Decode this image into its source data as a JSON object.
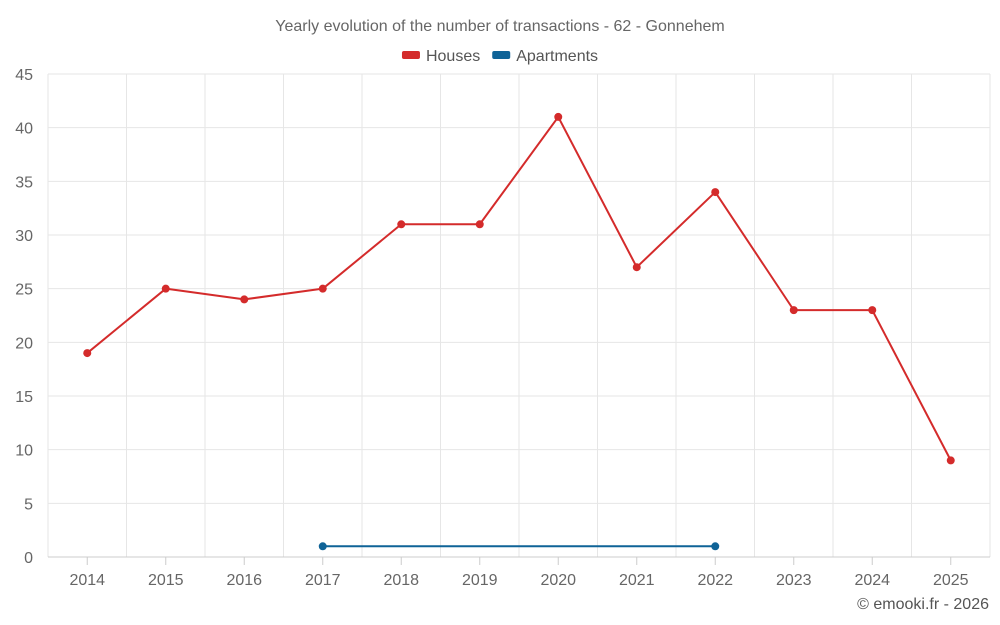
{
  "chart_data": {
    "type": "line",
    "title": "Yearly evolution of the number of transactions - 62 - Gonnehem",
    "categories": [
      "2014",
      "2015",
      "2016",
      "2017",
      "2018",
      "2019",
      "2020",
      "2021",
      "2022",
      "2023",
      "2024",
      "2025"
    ],
    "series": [
      {
        "name": "Houses",
        "color": "#d42b2b",
        "values": [
          19,
          25,
          24,
          25,
          31,
          31,
          41,
          27,
          34,
          23,
          23,
          9
        ]
      },
      {
        "name": "Apartments",
        "color": "#0f6397",
        "values": [
          null,
          null,
          null,
          1,
          null,
          null,
          null,
          null,
          1,
          null,
          null,
          null
        ]
      }
    ],
    "ylim": [
      0,
      45
    ],
    "yticks": [
      0,
      5,
      10,
      15,
      20,
      25,
      30,
      35,
      40,
      45
    ],
    "grid": true,
    "legend": "top-center",
    "xlabel": "",
    "ylabel": ""
  },
  "credit": "© emooki.fr - 2026"
}
